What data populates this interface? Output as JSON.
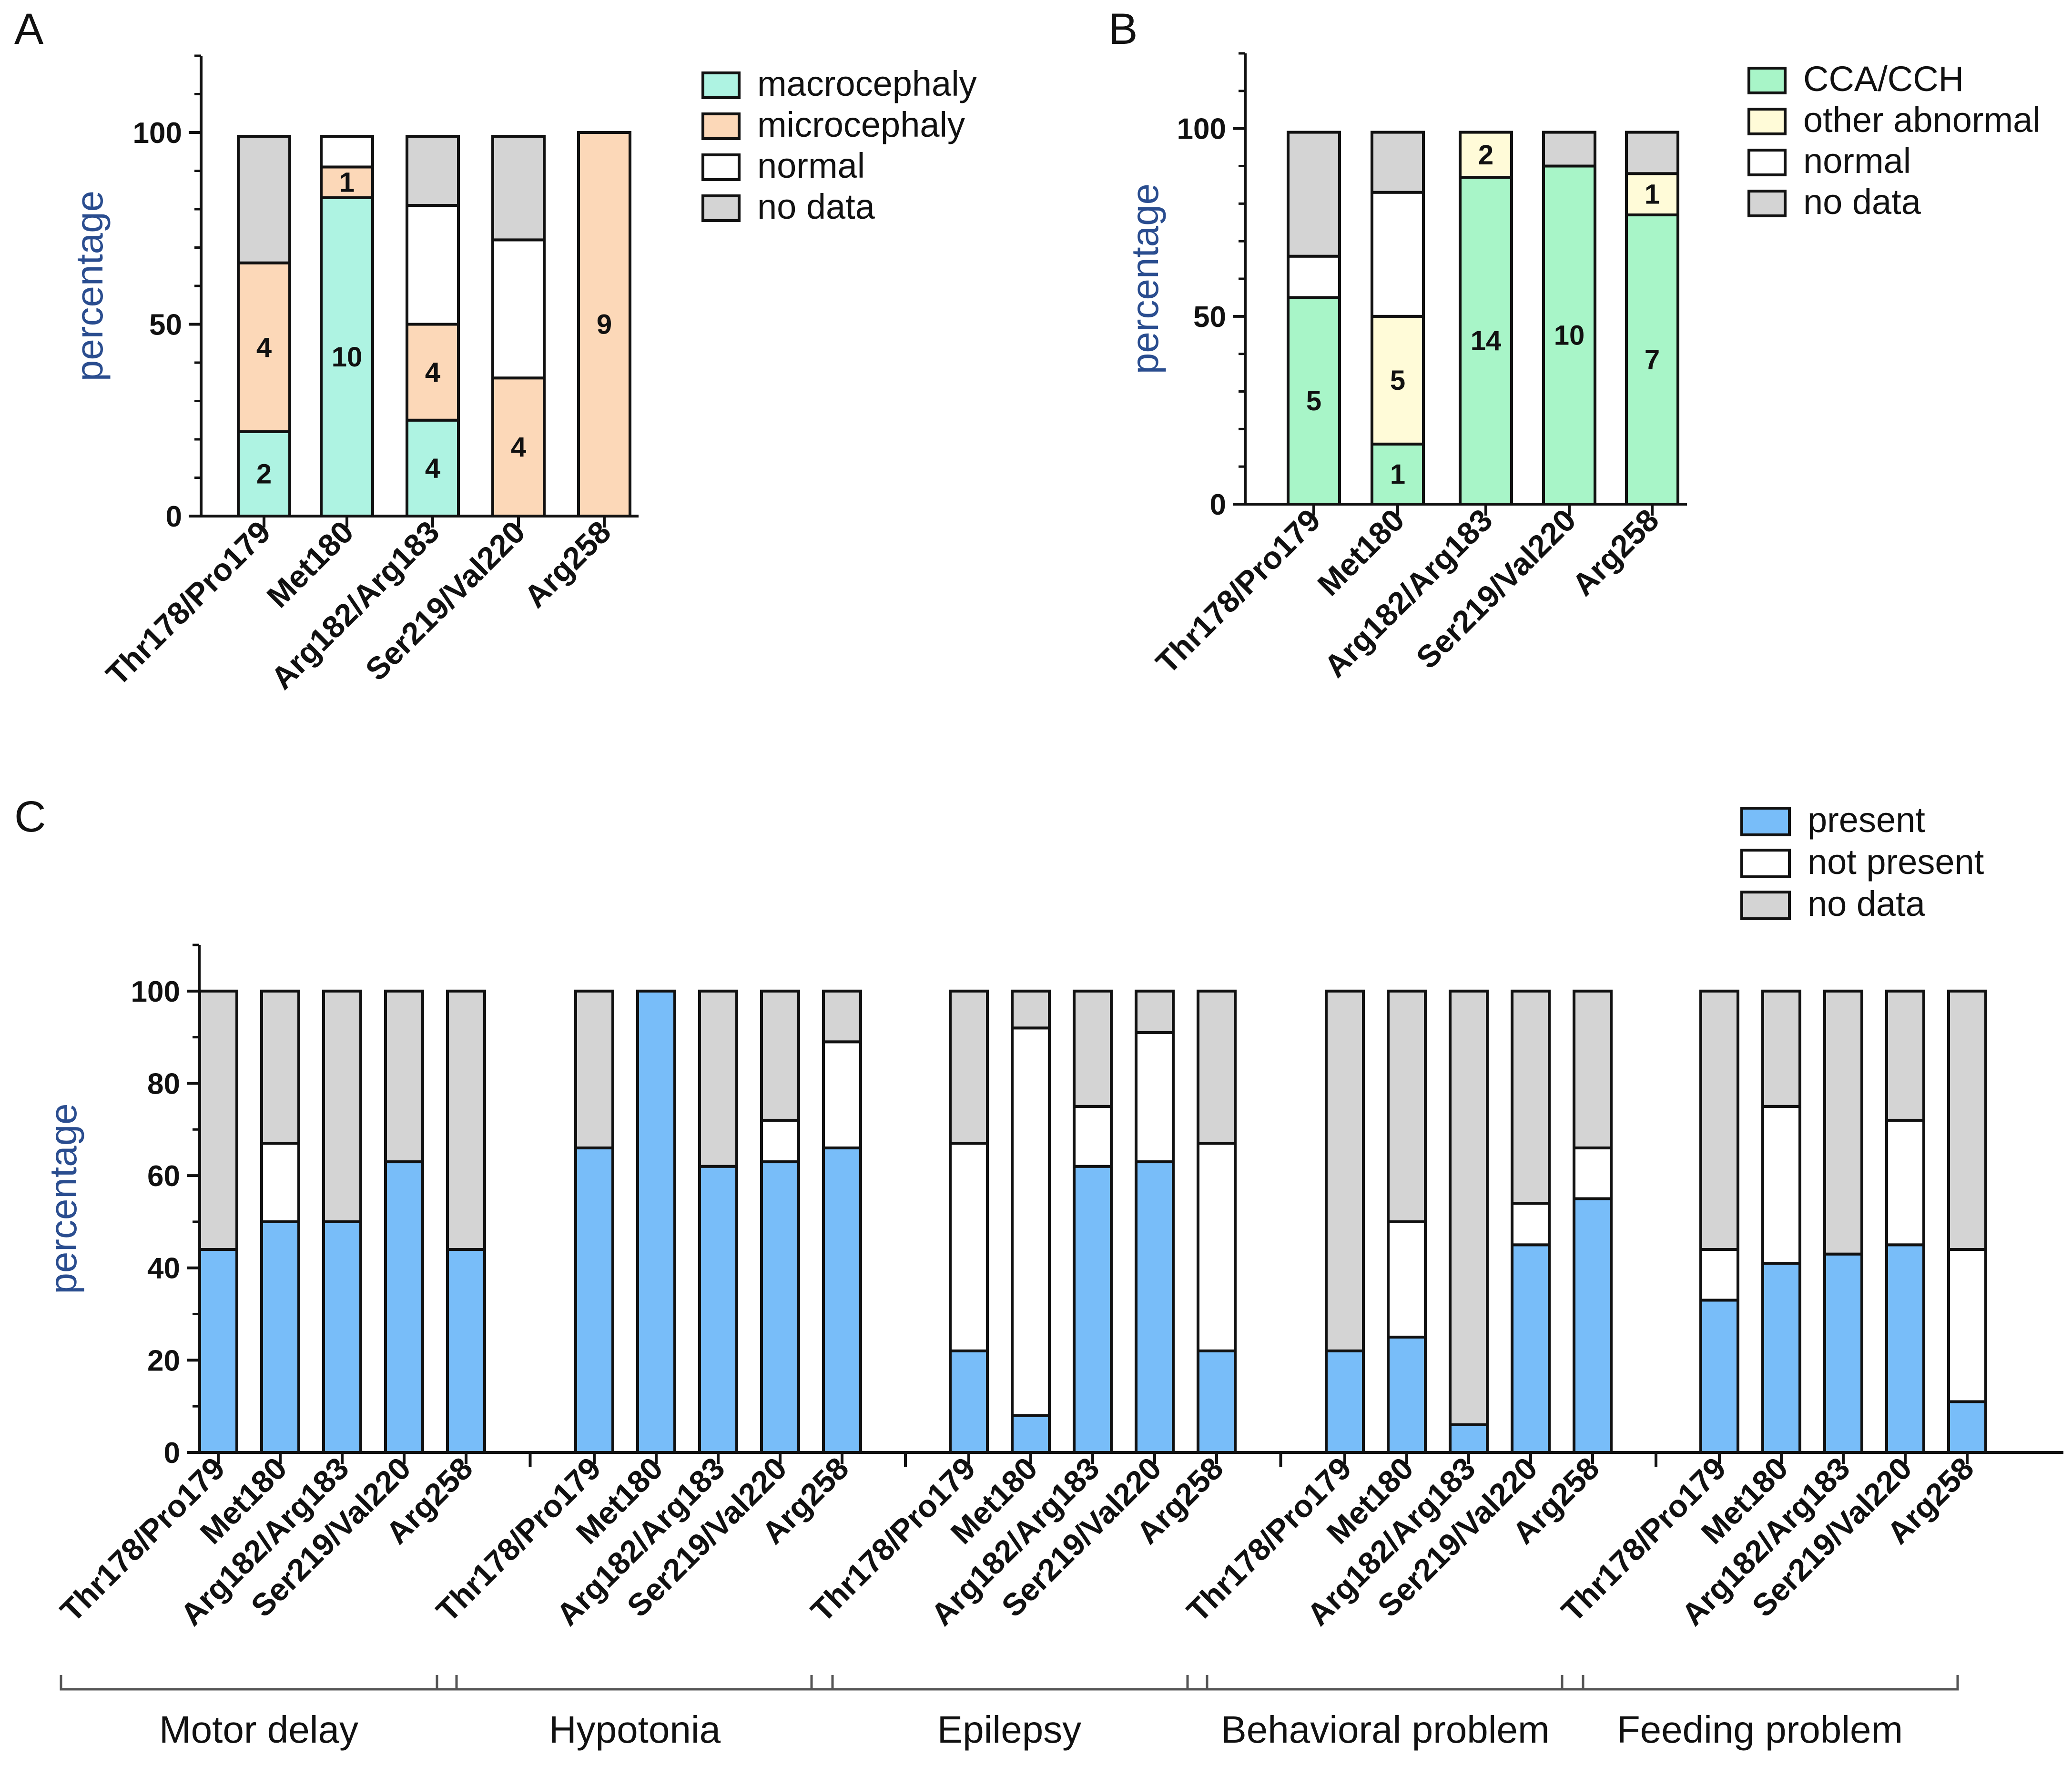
{
  "chart_data": [
    {
      "panel": "A",
      "type": "bar",
      "stacked": true,
      "ylabel": "percentage",
      "ylim": [
        0,
        120
      ],
      "yticks": [
        0,
        50,
        100
      ],
      "categories": [
        "Thr178/Pro179",
        "Met180",
        "Arg182/Arg183",
        "Ser219/Val220",
        "Arg258"
      ],
      "series": [
        {
          "name": "macrocephaly",
          "color": "#aef3e2",
          "values": [
            22,
            83,
            25,
            0,
            0
          ]
        },
        {
          "name": "microcephaly",
          "color": "#fcd8b8",
          "values": [
            44,
            8,
            25,
            36,
            100
          ]
        },
        {
          "name": "normal",
          "color": "#ffffff",
          "values": [
            0,
            8,
            31,
            36,
            0
          ]
        },
        {
          "name": "no data",
          "color": "#d4d4d4",
          "values": [
            33,
            0,
            18,
            27,
            0
          ]
        }
      ],
      "annotations": [
        {
          "category": "Thr178/Pro179",
          "series": "macrocephaly",
          "text": "2"
        },
        {
          "category": "Thr178/Pro179",
          "series": "microcephaly",
          "text": "4"
        },
        {
          "category": "Met180",
          "series": "macrocephaly",
          "text": "10"
        },
        {
          "category": "Met180",
          "series": "microcephaly",
          "text": "1"
        },
        {
          "category": "Arg182/Arg183",
          "series": "macrocephaly",
          "text": "4"
        },
        {
          "category": "Arg182/Arg183",
          "series": "microcephaly",
          "text": "4"
        },
        {
          "category": "Ser219/Val220",
          "series": "microcephaly",
          "text": "4"
        },
        {
          "category": "Arg258",
          "series": "microcephaly",
          "text": "9"
        }
      ],
      "legend": {
        "placement": "top-right"
      }
    },
    {
      "panel": "B",
      "type": "bar",
      "stacked": true,
      "ylabel": "percentage",
      "ylim": [
        0,
        120
      ],
      "yticks": [
        0,
        50,
        100
      ],
      "categories": [
        "Thr178/Pro179",
        "Met180",
        "Arg182/Arg183",
        "Ser219/Val220",
        "Arg258"
      ],
      "series": [
        {
          "name": "CCA/CCH",
          "color": "#a8f5c8",
          "values": [
            55,
            16,
            87,
            90,
            77
          ]
        },
        {
          "name": "other abnormal",
          "color": "#fffbd8",
          "values": [
            0,
            34,
            12,
            0,
            11
          ]
        },
        {
          "name": "normal",
          "color": "#ffffff",
          "values": [
            11,
            33,
            0,
            0,
            0
          ]
        },
        {
          "name": "no data",
          "color": "#d4d4d4",
          "values": [
            33,
            16,
            0,
            9,
            11
          ]
        }
      ],
      "annotations": [
        {
          "category": "Thr178/Pro179",
          "series": "CCA/CCH",
          "text": "5"
        },
        {
          "category": "Met180",
          "series": "CCA/CCH",
          "text": "1"
        },
        {
          "category": "Met180",
          "series": "other abnormal",
          "text": "5"
        },
        {
          "category": "Arg182/Arg183",
          "series": "CCA/CCH",
          "text": "14"
        },
        {
          "category": "Arg182/Arg183",
          "series": "other abnormal",
          "text": "2"
        },
        {
          "category": "Ser219/Val220",
          "series": "CCA/CCH",
          "text": "10"
        },
        {
          "category": "Arg258",
          "series": "CCA/CCH",
          "text": "7"
        },
        {
          "category": "Arg258",
          "series": "other abnormal",
          "text": "1"
        }
      ],
      "legend": {
        "placement": "top-right"
      }
    },
    {
      "panel": "C",
      "type": "bar",
      "stacked": true,
      "ylabel": "percentage",
      "ylim": [
        0,
        110
      ],
      "yticks": [
        0,
        20,
        40,
        60,
        80,
        100
      ],
      "categories": [
        "Thr178/Pro179",
        "Met180",
        "Arg182/Arg183",
        "Ser219/Val220",
        "Arg258"
      ],
      "groups": [
        {
          "name": "Motor delay",
          "present": [
            44,
            50,
            50,
            63,
            44
          ],
          "not_present": [
            0,
            17,
            0,
            0,
            0
          ],
          "no_data": [
            56,
            33,
            50,
            37,
            56
          ]
        },
        {
          "name": "Hypotonia",
          "present": [
            66,
            100,
            62,
            63,
            66
          ],
          "not_present": [
            0,
            0,
            0,
            9,
            23
          ],
          "no_data": [
            34,
            0,
            38,
            28,
            11
          ]
        },
        {
          "name": "Epilepsy",
          "present": [
            22,
            8,
            62,
            63,
            22
          ],
          "not_present": [
            45,
            84,
            13,
            28,
            45
          ],
          "no_data": [
            33,
            8,
            25,
            9,
            33
          ]
        },
        {
          "name": "Behavioral problem",
          "present": [
            22,
            25,
            6,
            45,
            55
          ],
          "not_present": [
            0,
            25,
            0,
            9,
            11
          ],
          "no_data": [
            78,
            50,
            94,
            46,
            34
          ]
        },
        {
          "name": "Feeding problem",
          "present": [
            33,
            41,
            43,
            45,
            11
          ],
          "not_present": [
            11,
            34,
            0,
            27,
            33
          ],
          "no_data": [
            56,
            25,
            57,
            28,
            56
          ]
        }
      ],
      "series": [
        {
          "name": "present",
          "color": "#78bdf9"
        },
        {
          "name": "not present",
          "color": "#ffffff"
        },
        {
          "name": "no data",
          "color": "#d4d4d4"
        }
      ],
      "legend": {
        "placement": "top-right"
      }
    }
  ]
}
